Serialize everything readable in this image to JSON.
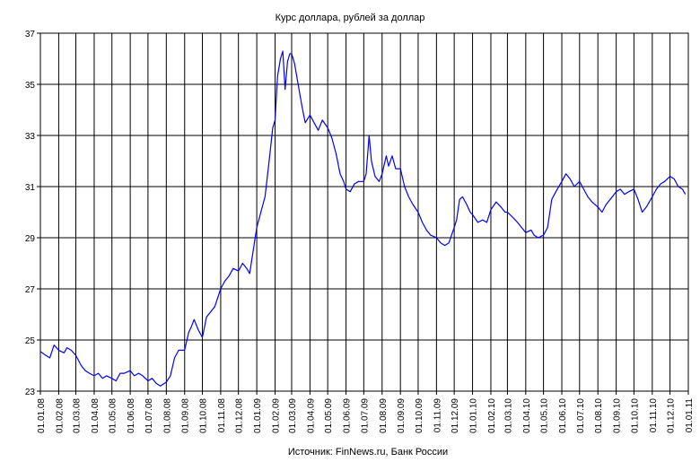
{
  "chart_data": {
    "type": "line",
    "title": "Курс доллара, рублей за доллар",
    "source": "Источник: FinNews.ru, Банк России",
    "xlabel": "",
    "ylabel": "",
    "ylim": [
      23,
      37
    ],
    "y_ticks": [
      23,
      25,
      27,
      29,
      31,
      33,
      35,
      37
    ],
    "x_tick_labels": [
      "01.01.08",
      "01.02.08",
      "01.03.08",
      "01.04.08",
      "01.05.08",
      "01.06.08",
      "01.07.08",
      "01.08.08",
      "01.09.08",
      "01.10.08",
      "01.11.08",
      "01.12.08",
      "01.01.09",
      "01.02.09",
      "01.03.09",
      "01.04.09",
      "01.05.09",
      "01.06.09",
      "01.07.09",
      "01.08.09",
      "01.09.09",
      "01.10.09",
      "01.11.09",
      "01.12.09",
      "01.01.10",
      "01.02.10",
      "01.03.10",
      "01.04.10",
      "01.05.10",
      "01.06.10",
      "01.07.10",
      "01.08.10",
      "01.09.10",
      "01.10.10",
      "01.11.10",
      "01.12.10",
      "01.01.11"
    ],
    "grid": true,
    "legend": "none",
    "line_color": "#0000ff",
    "series": [
      {
        "values": [
          [
            "01.01.08",
            24.55
          ],
          [
            "10.01.08",
            24.4
          ],
          [
            "17.01.08",
            24.3
          ],
          [
            "24.01.08",
            24.8
          ],
          [
            "01.02.08",
            24.6
          ],
          [
            "10.02.08",
            24.5
          ],
          [
            "15.02.08",
            24.7
          ],
          [
            "22.02.08",
            24.6
          ],
          [
            "01.03.08",
            24.4
          ],
          [
            "10.03.08",
            24.0
          ],
          [
            "17.03.08",
            23.8
          ],
          [
            "24.03.08",
            23.7
          ],
          [
            "01.04.08",
            23.6
          ],
          [
            "08.04.08",
            23.7
          ],
          [
            "15.04.08",
            23.5
          ],
          [
            "22.04.08",
            23.6
          ],
          [
            "01.05.08",
            23.5
          ],
          [
            "08.05.08",
            23.4
          ],
          [
            "15.05.08",
            23.7
          ],
          [
            "22.05.08",
            23.7
          ],
          [
            "01.06.08",
            23.8
          ],
          [
            "08.06.08",
            23.6
          ],
          [
            "15.06.08",
            23.7
          ],
          [
            "22.06.08",
            23.6
          ],
          [
            "01.07.08",
            23.4
          ],
          [
            "08.07.08",
            23.5
          ],
          [
            "15.07.08",
            23.3
          ],
          [
            "22.07.08",
            23.2
          ],
          [
            "01.08.08",
            23.35
          ],
          [
            "08.08.08",
            23.6
          ],
          [
            "15.08.08",
            24.3
          ],
          [
            "22.08.08",
            24.6
          ],
          [
            "01.09.08",
            24.6
          ],
          [
            "08.09.08",
            25.3
          ],
          [
            "12.09.08",
            25.5
          ],
          [
            "17.09.08",
            25.8
          ],
          [
            "24.09.08",
            25.4
          ],
          [
            "01.10.08",
            25.1
          ],
          [
            "08.10.08",
            25.9
          ],
          [
            "15.10.08",
            26.1
          ],
          [
            "22.10.08",
            26.3
          ],
          [
            "01.11.08",
            27.0
          ],
          [
            "08.11.08",
            27.3
          ],
          [
            "15.11.08",
            27.5
          ],
          [
            "22.11.08",
            27.8
          ],
          [
            "01.12.08",
            27.7
          ],
          [
            "08.12.08",
            28.0
          ],
          [
            "15.12.08",
            27.8
          ],
          [
            "20.12.08",
            27.6
          ],
          [
            "01.01.09",
            29.4
          ],
          [
            "08.01.09",
            30.0
          ],
          [
            "15.01.09",
            30.6
          ],
          [
            "22.01.09",
            32.0
          ],
          [
            "28.01.09",
            33.3
          ],
          [
            "01.02.09",
            33.6
          ],
          [
            "05.02.09",
            35.3
          ],
          [
            "10.02.09",
            36.0
          ],
          [
            "14.02.09",
            36.3
          ],
          [
            "18.02.09",
            34.8
          ],
          [
            "22.02.09",
            35.9
          ],
          [
            "26.02.09",
            36.2
          ],
          [
            "01.03.09",
            36.2
          ],
          [
            "06.03.09",
            35.8
          ],
          [
            "12.03.09",
            35.0
          ],
          [
            "18.03.09",
            34.2
          ],
          [
            "24.03.09",
            33.5
          ],
          [
            "01.04.09",
            33.8
          ],
          [
            "08.04.09",
            33.5
          ],
          [
            "15.04.09",
            33.2
          ],
          [
            "22.04.09",
            33.6
          ],
          [
            "01.05.09",
            33.3
          ],
          [
            "08.05.09",
            32.9
          ],
          [
            "15.05.09",
            32.3
          ],
          [
            "22.05.09",
            31.5
          ],
          [
            "28.05.09",
            31.2
          ],
          [
            "01.06.09",
            30.9
          ],
          [
            "08.06.09",
            30.8
          ],
          [
            "15.06.09",
            31.1
          ],
          [
            "22.06.09",
            31.2
          ],
          [
            "01.07.09",
            31.2
          ],
          [
            "05.07.09",
            31.5
          ],
          [
            "10.07.09",
            33.0
          ],
          [
            "14.07.09",
            32.0
          ],
          [
            "20.07.09",
            31.4
          ],
          [
            "27.07.09",
            31.2
          ],
          [
            "01.08.09",
            31.5
          ],
          [
            "08.08.09",
            32.2
          ],
          [
            "12.08.09",
            31.8
          ],
          [
            "18.08.09",
            32.2
          ],
          [
            "24.08.09",
            31.7
          ],
          [
            "01.09.09",
            31.7
          ],
          [
            "08.09.09",
            31.0
          ],
          [
            "15.09.09",
            30.6
          ],
          [
            "22.09.09",
            30.3
          ],
          [
            "01.10.09",
            30.0
          ],
          [
            "08.10.09",
            29.6
          ],
          [
            "15.10.09",
            29.3
          ],
          [
            "22.10.09",
            29.1
          ],
          [
            "01.11.09",
            29.0
          ],
          [
            "08.11.09",
            28.8
          ],
          [
            "15.11.09",
            28.7
          ],
          [
            "22.11.09",
            28.8
          ],
          [
            "01.12.09",
            29.4
          ],
          [
            "05.12.09",
            29.7
          ],
          [
            "10.12.09",
            30.5
          ],
          [
            "15.12.09",
            30.6
          ],
          [
            "22.12.09",
            30.3
          ],
          [
            "28.12.09",
            30.0
          ],
          [
            "01.01.10",
            29.9
          ],
          [
            "10.01.10",
            29.6
          ],
          [
            "18.01.10",
            29.7
          ],
          [
            "25.01.10",
            29.6
          ],
          [
            "01.02.10",
            30.1
          ],
          [
            "10.02.10",
            30.4
          ],
          [
            "18.02.10",
            30.2
          ],
          [
            "25.02.10",
            30.0
          ],
          [
            "01.03.10",
            30.0
          ],
          [
            "10.03.10",
            29.8
          ],
          [
            "18.03.10",
            29.6
          ],
          [
            "25.03.10",
            29.4
          ],
          [
            "01.04.10",
            29.2
          ],
          [
            "10.04.10",
            29.3
          ],
          [
            "15.04.10",
            29.1
          ],
          [
            "22.04.10",
            29.0
          ],
          [
            "01.05.10",
            29.1
          ],
          [
            "08.05.10",
            29.4
          ],
          [
            "15.05.10",
            30.5
          ],
          [
            "22.05.10",
            30.8
          ],
          [
            "01.06.10",
            31.2
          ],
          [
            "08.06.10",
            31.5
          ],
          [
            "15.06.10",
            31.3
          ],
          [
            "22.06.10",
            31.0
          ],
          [
            "01.07.10",
            31.2
          ],
          [
            "08.07.10",
            30.9
          ],
          [
            "15.07.10",
            30.6
          ],
          [
            "22.07.10",
            30.4
          ],
          [
            "01.08.10",
            30.2
          ],
          [
            "08.08.10",
            30.0
          ],
          [
            "15.08.10",
            30.3
          ],
          [
            "22.08.10",
            30.5
          ],
          [
            "01.09.10",
            30.8
          ],
          [
            "08.09.10",
            30.9
          ],
          [
            "15.09.10",
            30.7
          ],
          [
            "22.09.10",
            30.8
          ],
          [
            "01.10.10",
            30.9
          ],
          [
            "08.10.10",
            30.5
          ],
          [
            "15.10.10",
            30.0
          ],
          [
            "22.10.10",
            30.2
          ],
          [
            "01.11.10",
            30.6
          ],
          [
            "08.11.10",
            30.9
          ],
          [
            "15.11.10",
            31.1
          ],
          [
            "22.11.10",
            31.2
          ],
          [
            "01.12.10",
            31.4
          ],
          [
            "08.12.10",
            31.3
          ],
          [
            "15.12.10",
            31.0
          ],
          [
            "22.12.10",
            30.9
          ],
          [
            "27.12.10",
            30.7
          ]
        ]
      }
    ]
  }
}
